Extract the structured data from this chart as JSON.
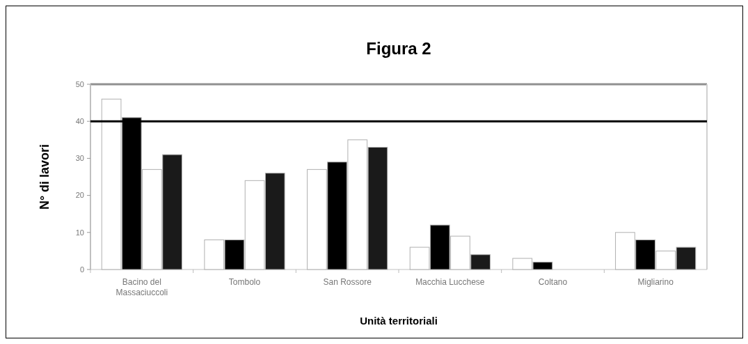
{
  "chart_data": {
    "type": "bar",
    "title": "Figura 2",
    "xlabel": "Unità territoriali",
    "ylabel": "N° di lavori",
    "categories": [
      "Bacino del Massaciuccoli",
      "Tombolo",
      "San Rossore",
      "Macchia Lucchese",
      "Coltano",
      "Migliarino"
    ],
    "series": [
      {
        "color": "#ffffff",
        "values": [
          46,
          8,
          27,
          6,
          3,
          10
        ]
      },
      {
        "color": "#000000",
        "values": [
          41,
          8,
          29,
          12,
          2,
          8
        ]
      },
      {
        "color": "#ffffff",
        "values": [
          27,
          24,
          35,
          9,
          0,
          5
        ]
      },
      {
        "color": "#1a1a1a",
        "values": [
          31,
          26,
          33,
          4,
          0,
          6
        ]
      }
    ],
    "ylim": [
      0,
      50
    ],
    "yticks": [
      0,
      10,
      20,
      30,
      40,
      50
    ],
    "ref_lines": [
      {
        "axis": "y",
        "value": 40,
        "color": "#000000"
      }
    ]
  }
}
